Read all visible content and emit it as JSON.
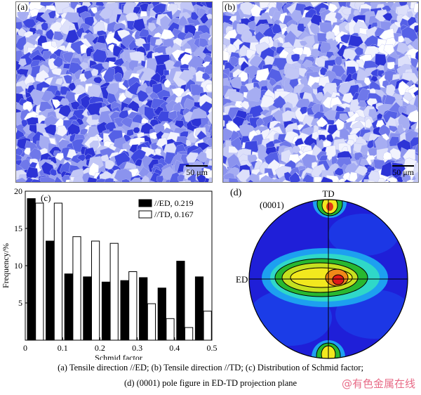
{
  "panels": {
    "a": {
      "tag": "(a)",
      "scale": "50 μm"
    },
    "b": {
      "tag": "(b)",
      "scale": "50 μm"
    },
    "c": {
      "tag": "(c)"
    },
    "d": {
      "tag": "(d)"
    }
  },
  "chart_data": {
    "type": "bar",
    "xlabel": "Schmid factor",
    "ylabel": "Frequency/%",
    "xlim": [
      0,
      0.5
    ],
    "ylim": [
      0,
      20
    ],
    "xticks": [
      "0",
      "0.1",
      "0.2",
      "0.3",
      "0.4",
      "0.5"
    ],
    "yticks": [
      "5",
      "10",
      "15",
      "20"
    ],
    "bin_centers": [
      0.025,
      0.075,
      0.125,
      0.175,
      0.225,
      0.275,
      0.325,
      0.375,
      0.425,
      0.475
    ],
    "series": [
      {
        "name": "//ED, 0.219",
        "color": "#000000",
        "values": [
          19.0,
          13.3,
          8.9,
          8.5,
          7.8,
          8.0,
          8.4,
          7.0,
          10.6,
          8.5
        ]
      },
      {
        "name": "//TD, 0.167",
        "color": "#ffffff",
        "values": [
          18.4,
          18.4,
          13.9,
          13.3,
          13.0,
          9.2,
          4.9,
          2.9,
          1.7,
          3.9
        ]
      }
    ],
    "legend_position": "top-right"
  },
  "pole_figure": {
    "label": "(0001)",
    "top_label": "TD",
    "left_label": "ED"
  },
  "caption": {
    "line1": "(a) Tensile direction //ED; (b) Tensile direction //TD; (c) Distribution of Schmid factor;",
    "line2": "(d) (0001) pole figure in ED-TD projection plane"
  },
  "watermark": "@有色金属在线"
}
